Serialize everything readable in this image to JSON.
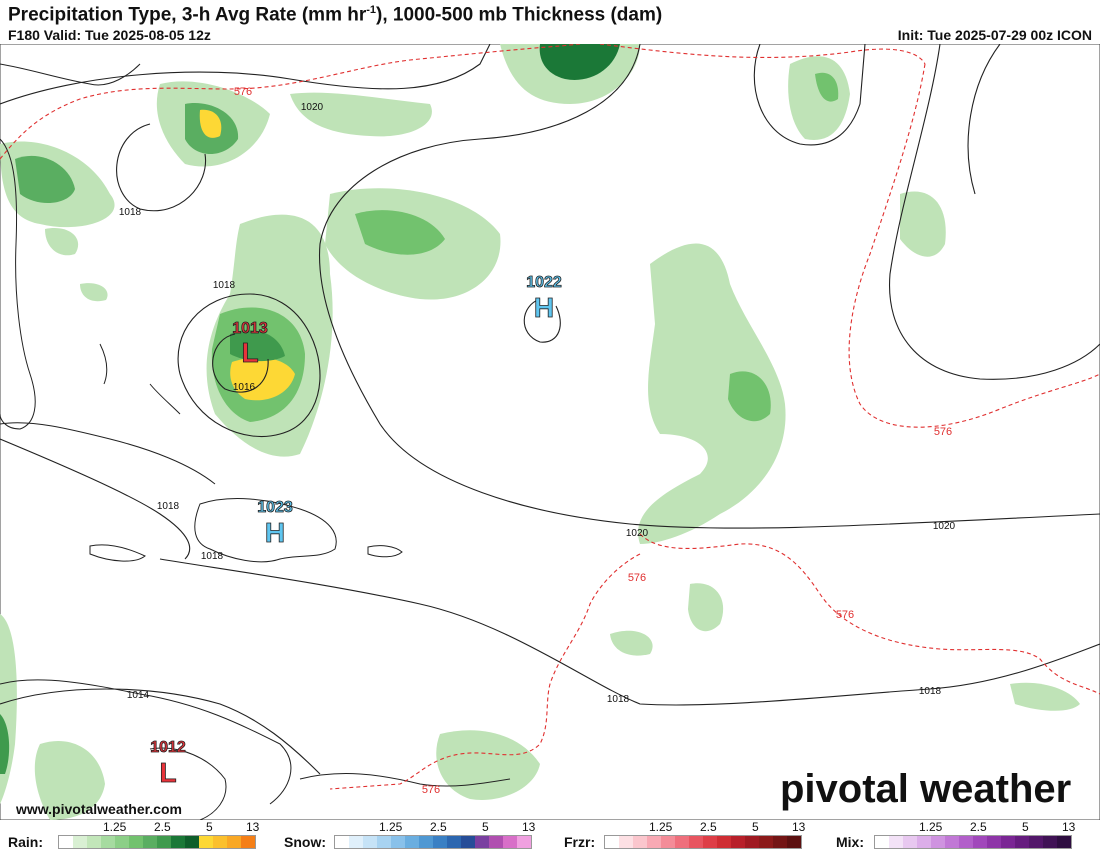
{
  "header": {
    "title_main": "Precipitation Type, 3-h Avg Rate (mm hr",
    "title_sup": "-1",
    "title_rest": "), 1000-500 mb Thickness (dam)",
    "valid": "F180 Valid: Tue 2025-08-05 12z",
    "init": "Init: Tue 2025-07-29 00z ICON"
  },
  "map": {
    "pressure_centers": [
      {
        "type": "L",
        "value": "1013",
        "color": "#e8333a"
      },
      {
        "type": "H",
        "value": "1022",
        "color": "#5fc6f0"
      },
      {
        "type": "H",
        "value": "1023",
        "color": "#5fc6f0"
      },
      {
        "type": "L",
        "value": "1012",
        "color": "#e8333a"
      }
    ],
    "isobar_labels": [
      "1020",
      "1018",
      "1018",
      "1016",
      "1018",
      "1018",
      "1020",
      "1020",
      "1018",
      "1014",
      "1018"
    ],
    "thickness_labels": [
      "576",
      "576",
      "576",
      "576",
      "576"
    ],
    "colors": {
      "isobar": "#222222",
      "thickness": "#e03030",
      "rain_light": "#a6dba0",
      "rain_mid": "#5aae61",
      "rain_heavy": "#1b7837",
      "rain_intense": "#fdd835"
    },
    "watermark": "pivotal weather",
    "website": "www.pivotalweather.com"
  },
  "legend": {
    "rain": {
      "label": "Rain:",
      "ticks": [
        "1.25",
        "2.5",
        "5",
        "13"
      ],
      "colors": [
        "#ffffff",
        "#d9f0d3",
        "#c2e6b9",
        "#a6dba0",
        "#8ccf87",
        "#72c26e",
        "#5aae61",
        "#3f9a4d",
        "#1b7837",
        "#0e5e2a",
        "#fdd835",
        "#fbc02d",
        "#f9a825",
        "#f57f17"
      ]
    },
    "snow": {
      "label": "Snow:",
      "ticks": [
        "1.25",
        "2.5",
        "5",
        "13"
      ],
      "colors": [
        "#ffffff",
        "#e0f0fb",
        "#c6e3f7",
        "#a8d3f1",
        "#89c1ea",
        "#6aaee0",
        "#4f98d3",
        "#3a80c4",
        "#2c67b0",
        "#264d98",
        "#7a3fa0",
        "#b04fb0",
        "#d86fc8",
        "#f0a0e0"
      ]
    },
    "frzr": {
      "label": "Frzr:",
      "ticks": [
        "1.25",
        "2.5",
        "5",
        "13"
      ],
      "colors": [
        "#ffffff",
        "#fde0e4",
        "#fbc6cd",
        "#f8a9b4",
        "#f48c98",
        "#ef6f7c",
        "#e85560",
        "#de3e47",
        "#cf2d33",
        "#b8202a",
        "#a01a22",
        "#8c1a1a",
        "#741515",
        "#5c1010"
      ]
    },
    "mix": {
      "label": "Mix:",
      "ticks": [
        "1.25",
        "2.5",
        "5",
        "13"
      ],
      "colors": [
        "#ffffff",
        "#f3e2f7",
        "#e8c8f0",
        "#dcaee9",
        "#cf93e0",
        "#c178d6",
        "#b25fca",
        "#a148bb",
        "#8e35a8",
        "#7a2694",
        "#661c7f",
        "#53176a",
        "#401255",
        "#2e0d40"
      ]
    }
  }
}
